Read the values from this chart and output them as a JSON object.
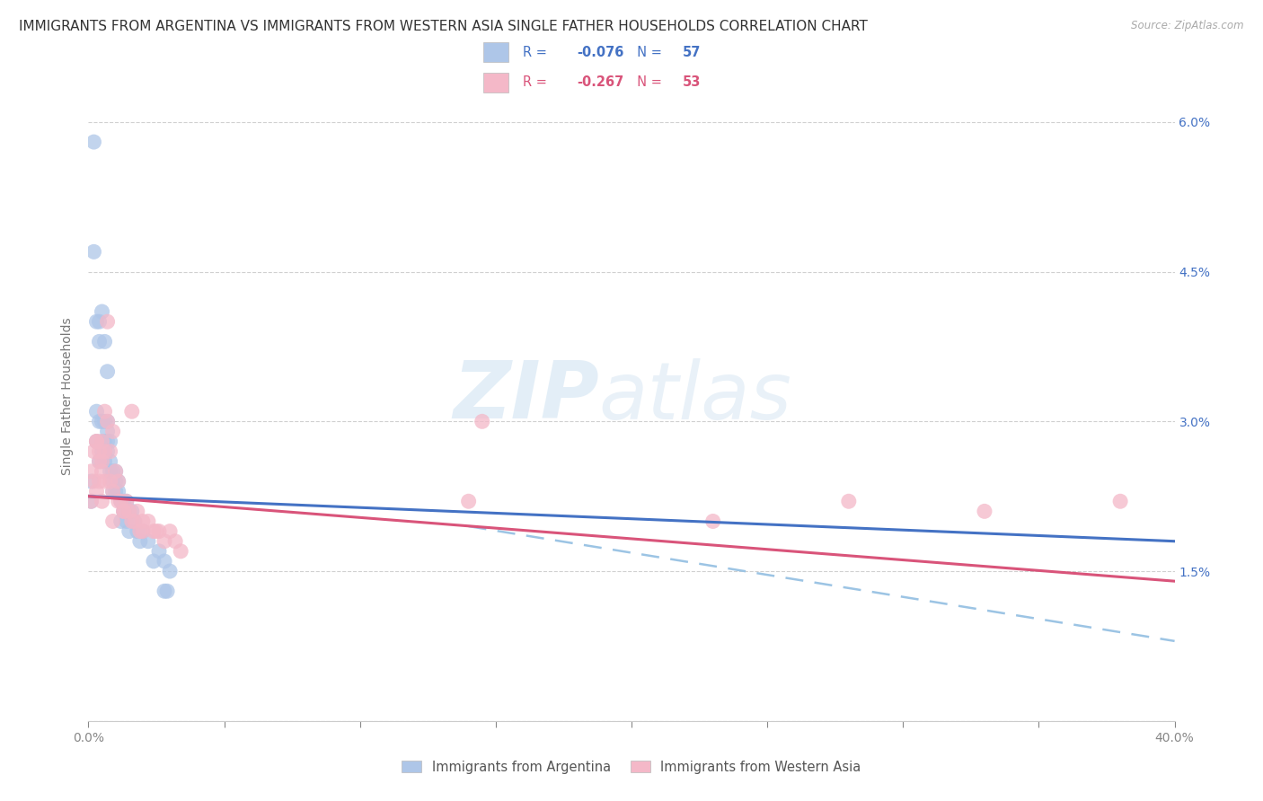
{
  "title": "IMMIGRANTS FROM ARGENTINA VS IMMIGRANTS FROM WESTERN ASIA SINGLE FATHER HOUSEHOLDS CORRELATION CHART",
  "source": "Source: ZipAtlas.com",
  "ylabel": "Single Father Households",
  "watermark_zip": "ZIP",
  "watermark_atlas": "atlas",
  "legend_label1": "Immigrants from Argentina",
  "legend_label2": "Immigrants from Western Asia",
  "R1": -0.076,
  "N1": 57,
  "R2": -0.267,
  "N2": 53,
  "color1": "#aec6e8",
  "color2": "#f4b8c8",
  "line_color1": "#4472c4",
  "line_color2": "#d9547a",
  "dash_color": "#9cc4e4",
  "xlim": [
    0.0,
    0.4
  ],
  "ylim": [
    0.0,
    0.065
  ],
  "background_color": "#ffffff",
  "grid_color": "#d0d0d0",
  "title_fontsize": 11,
  "axis_label_fontsize": 10,
  "tick_fontsize": 10,
  "argentina_x": [
    0.001,
    0.001,
    0.002,
    0.002,
    0.003,
    0.003,
    0.004,
    0.004,
    0.004,
    0.005,
    0.005,
    0.005,
    0.005,
    0.006,
    0.006,
    0.006,
    0.006,
    0.007,
    0.007,
    0.007,
    0.007,
    0.008,
    0.008,
    0.008,
    0.009,
    0.009,
    0.009,
    0.01,
    0.01,
    0.01,
    0.011,
    0.011,
    0.012,
    0.012,
    0.013,
    0.013,
    0.014,
    0.014,
    0.015,
    0.015,
    0.016,
    0.017,
    0.018,
    0.019,
    0.02,
    0.022,
    0.024,
    0.026,
    0.028,
    0.03,
    0.003,
    0.004,
    0.005,
    0.006,
    0.007,
    0.028,
    0.029
  ],
  "argentina_y": [
    0.024,
    0.022,
    0.058,
    0.047,
    0.028,
    0.031,
    0.038,
    0.03,
    0.026,
    0.03,
    0.028,
    0.027,
    0.026,
    0.03,
    0.028,
    0.027,
    0.026,
    0.03,
    0.029,
    0.028,
    0.027,
    0.028,
    0.026,
    0.025,
    0.025,
    0.024,
    0.023,
    0.025,
    0.024,
    0.023,
    0.024,
    0.023,
    0.022,
    0.02,
    0.022,
    0.021,
    0.022,
    0.02,
    0.021,
    0.019,
    0.021,
    0.02,
    0.019,
    0.018,
    0.019,
    0.018,
    0.016,
    0.017,
    0.016,
    0.015,
    0.04,
    0.04,
    0.041,
    0.038,
    0.035,
    0.013,
    0.013
  ],
  "western_x": [
    0.001,
    0.001,
    0.002,
    0.002,
    0.003,
    0.003,
    0.004,
    0.004,
    0.005,
    0.005,
    0.005,
    0.006,
    0.006,
    0.007,
    0.007,
    0.008,
    0.008,
    0.009,
    0.009,
    0.01,
    0.011,
    0.012,
    0.013,
    0.014,
    0.015,
    0.016,
    0.017,
    0.018,
    0.019,
    0.02,
    0.022,
    0.024,
    0.026,
    0.028,
    0.03,
    0.032,
    0.034,
    0.14,
    0.145,
    0.23,
    0.28,
    0.33,
    0.38,
    0.003,
    0.004,
    0.005,
    0.006,
    0.009,
    0.011,
    0.013,
    0.016,
    0.02,
    0.025
  ],
  "western_y": [
    0.025,
    0.022,
    0.027,
    0.024,
    0.028,
    0.023,
    0.027,
    0.024,
    0.028,
    0.025,
    0.022,
    0.027,
    0.024,
    0.04,
    0.03,
    0.027,
    0.024,
    0.023,
    0.02,
    0.025,
    0.022,
    0.022,
    0.021,
    0.022,
    0.021,
    0.02,
    0.02,
    0.021,
    0.019,
    0.02,
    0.02,
    0.019,
    0.019,
    0.018,
    0.019,
    0.018,
    0.017,
    0.022,
    0.03,
    0.02,
    0.022,
    0.021,
    0.022,
    0.028,
    0.026,
    0.026,
    0.031,
    0.029,
    0.024,
    0.021,
    0.031,
    0.019,
    0.019
  ],
  "blue_line_x0": 0.0,
  "blue_line_y0": 0.0225,
  "blue_line_x1": 0.4,
  "blue_line_y1": 0.018,
  "pink_line_x0": 0.0,
  "pink_line_y0": 0.0225,
  "pink_line_x1": 0.4,
  "pink_line_y1": 0.014,
  "dash_line_x0": 0.14,
  "dash_line_y0": 0.0195,
  "dash_line_x1": 0.4,
  "dash_line_y1": 0.008
}
